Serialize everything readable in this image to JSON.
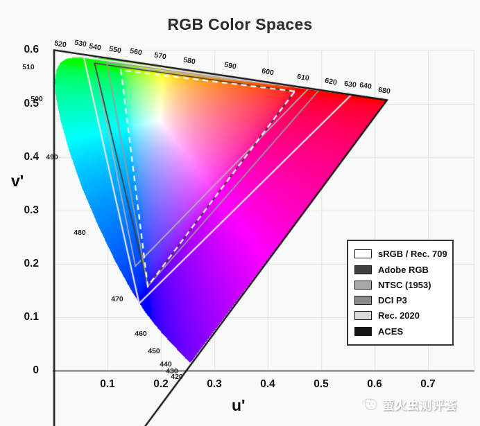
{
  "title": "RGB Color Spaces",
  "axes": {
    "x_label": "u'",
    "y_label": "v'",
    "x_ticks": [
      "0.1",
      "0.2",
      "0.3",
      "0.4",
      "0.5",
      "0.6",
      "0.7"
    ],
    "y_ticks": [
      "0",
      "0.1",
      "0.2",
      "0.3",
      "0.4",
      "0.5",
      "0.6"
    ]
  },
  "legend": {
    "entries": [
      {
        "label": "sRGB / Rec. 709",
        "swatch": "#ffffff"
      },
      {
        "label": "Adobe RGB",
        "swatch": "#3f3f3f"
      },
      {
        "label": "NTSC (1953)",
        "swatch": "#a8a8a8"
      },
      {
        "label": "DCI P3",
        "swatch": "#8b8b8b"
      },
      {
        "label": "Rec. 2020",
        "swatch": "#d8d8d8"
      },
      {
        "label": "ACES",
        "swatch": "#161616"
      }
    ]
  },
  "watermark": {
    "text": "萤火虫测评荟",
    "icon": "firefly-icon"
  },
  "chart_data": {
    "type": "area",
    "subtype": "CIE 1976 u'v' chromaticity diagram (horseshoe) with RGB gamut triangles",
    "title": "RGB Color Spaces",
    "xlabel": "u'",
    "ylabel": "v'",
    "xlim": [
      0,
      0.75
    ],
    "ylim": [
      0,
      0.62
    ],
    "grid": true,
    "legend_position": "lower right",
    "grid_color": "#e2e2e2",
    "axis_color": "#3a3a3a",
    "spectral_locus_xy": [
      [
        380,
        0.1741,
        0.005
      ],
      [
        400,
        0.1733,
        0.0048
      ],
      [
        410,
        0.1726,
        0.0048
      ],
      [
        420,
        0.1714,
        0.0051
      ],
      [
        430,
        0.1689,
        0.0069
      ],
      [
        440,
        0.1644,
        0.0109
      ],
      [
        450,
        0.1566,
        0.0177
      ],
      [
        455,
        0.151,
        0.0227
      ],
      [
        460,
        0.144,
        0.0297
      ],
      [
        465,
        0.1355,
        0.0399
      ],
      [
        470,
        0.1241,
        0.0578
      ],
      [
        475,
        0.1096,
        0.0868
      ],
      [
        480,
        0.0913,
        0.1327
      ],
      [
        485,
        0.0687,
        0.2007
      ],
      [
        490,
        0.0454,
        0.295
      ],
      [
        495,
        0.0235,
        0.4127
      ],
      [
        500,
        0.0082,
        0.5384
      ],
      [
        505,
        0.0039,
        0.6548
      ],
      [
        510,
        0.0139,
        0.7502
      ],
      [
        515,
        0.0389,
        0.812
      ],
      [
        520,
        0.0743,
        0.8338
      ],
      [
        525,
        0.1142,
        0.8262
      ],
      [
        530,
        0.1547,
        0.8059
      ],
      [
        535,
        0.1929,
        0.7816
      ],
      [
        540,
        0.2296,
        0.7543
      ],
      [
        545,
        0.2658,
        0.7243
      ],
      [
        550,
        0.3016,
        0.6923
      ],
      [
        555,
        0.3373,
        0.6589
      ],
      [
        560,
        0.3731,
        0.6245
      ],
      [
        565,
        0.4087,
        0.5896
      ],
      [
        570,
        0.4441,
        0.5547
      ],
      [
        575,
        0.4788,
        0.5202
      ],
      [
        580,
        0.5125,
        0.4866
      ],
      [
        585,
        0.5448,
        0.4544
      ],
      [
        590,
        0.5752,
        0.4242
      ],
      [
        595,
        0.6029,
        0.3965
      ],
      [
        600,
        0.627,
        0.3725
      ],
      [
        605,
        0.6482,
        0.3514
      ],
      [
        610,
        0.6658,
        0.334
      ],
      [
        615,
        0.6801,
        0.3197
      ],
      [
        620,
        0.6915,
        0.3083
      ],
      [
        630,
        0.7079,
        0.292
      ],
      [
        640,
        0.719,
        0.2809
      ],
      [
        650,
        0.726,
        0.274
      ],
      [
        660,
        0.73,
        0.27
      ],
      [
        680,
        0.7334,
        0.2666
      ],
      [
        700,
        0.7347,
        0.2653
      ]
    ],
    "wavelength_labels": [
      {
        "nm": "520",
        "px": [
          87,
          64
        ],
        "rot": 10
      },
      {
        "nm": "530",
        "px": [
          116,
          63
        ],
        "rot": 10
      },
      {
        "nm": "540",
        "px": [
          137,
          68
        ],
        "rot": 10
      },
      {
        "nm": "550",
        "px": [
          166,
          72
        ],
        "rot": 10
      },
      {
        "nm": "560",
        "px": [
          196,
          75
        ],
        "rot": 10
      },
      {
        "nm": "570",
        "px": [
          231,
          81
        ],
        "rot": 10
      },
      {
        "nm": "580",
        "px": [
          273,
          88
        ],
        "rot": 10
      },
      {
        "nm": "590",
        "px": [
          332,
          95
        ],
        "rot": 10
      },
      {
        "nm": "600",
        "px": [
          386,
          104
        ],
        "rot": 10
      },
      {
        "nm": "610",
        "px": [
          437,
          112
        ],
        "rot": 10
      },
      {
        "nm": "620",
        "px": [
          477,
          118
        ],
        "rot": 10
      },
      {
        "nm": "630",
        "px": [
          505,
          122
        ],
        "rot": 8
      },
      {
        "nm": "640",
        "px": [
          527,
          124
        ],
        "rot": 8
      },
      {
        "nm": "680",
        "px": [
          554,
          131
        ],
        "rot": 8
      },
      {
        "nm": "510",
        "px": [
          41,
          97
        ],
        "rot": 0
      },
      {
        "nm": "500",
        "px": [
          53,
          143
        ],
        "rot": 0
      },
      {
        "nm": "490",
        "px": [
          75,
          227
        ],
        "rot": 0
      },
      {
        "nm": "480",
        "px": [
          115,
          336
        ],
        "rot": 0
      },
      {
        "nm": "470",
        "px": [
          169,
          432
        ],
        "rot": 0
      },
      {
        "nm": "460",
        "px": [
          203,
          482
        ],
        "rot": 0
      },
      {
        "nm": "450",
        "px": [
          222,
          507
        ],
        "rot": 0
      },
      {
        "nm": "440",
        "px": [
          239,
          526
        ],
        "rot": 0
      },
      {
        "nm": "430",
        "px": [
          248,
          536
        ],
        "rot": 0
      },
      {
        "nm": "420",
        "px": [
          255,
          544
        ],
        "rot": 0
      }
    ],
    "color_spaces": [
      {
        "name": "sRGB / Rec. 709",
        "primaries_xy": [
          [
            0.64,
            0.33
          ],
          [
            0.3,
            0.6
          ],
          [
            0.15,
            0.06
          ]
        ],
        "stroke": "#ffffff",
        "dash": [
          8,
          6
        ],
        "width": 2.2,
        "z": 5
      },
      {
        "name": "Adobe RGB",
        "primaries_xy": [
          [
            0.64,
            0.33
          ],
          [
            0.21,
            0.71
          ],
          [
            0.15,
            0.06
          ]
        ],
        "stroke": "#3d3d3d",
        "dash": null,
        "width": 1.7,
        "z": 2
      },
      {
        "name": "NTSC (1953)",
        "primaries_xy": [
          [
            0.67,
            0.33
          ],
          [
            0.21,
            0.71
          ],
          [
            0.14,
            0.08
          ]
        ],
        "stroke": "#b2b2b2",
        "dash": null,
        "width": 1.7,
        "z": 1
      },
      {
        "name": "DCI P3",
        "primaries_xy": [
          [
            0.68,
            0.32
          ],
          [
            0.265,
            0.69
          ],
          [
            0.15,
            0.06
          ]
        ],
        "stroke": "#9a9a9a",
        "dash": null,
        "width": 1.7,
        "z": 3
      },
      {
        "name": "Rec. 2020",
        "primaries_xy": [
          [
            0.708,
            0.292
          ],
          [
            0.17,
            0.797
          ],
          [
            0.131,
            0.046
          ]
        ],
        "stroke": "#e6e6e6",
        "dash": null,
        "width": 2.2,
        "z": 4
      },
      {
        "name": "ACES",
        "primaries_xy": [
          [
            0.7347,
            0.2653
          ],
          [
            0.0,
            1.0
          ],
          [
            0.0001,
            -0.077
          ]
        ],
        "stroke": "#101010",
        "dash": null,
        "width": 2.4,
        "z": 6
      }
    ]
  }
}
